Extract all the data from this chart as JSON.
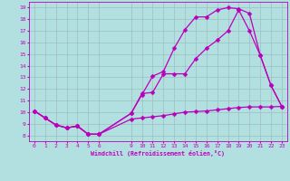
{
  "xlabel": "Windchill (Refroidissement éolien,°C)",
  "bg_color": "#b2dfdf",
  "line_color": "#bb00bb",
  "grid_color": "#9fbfbf",
  "xlim": [
    -0.5,
    23.5
  ],
  "ylim": [
    7.5,
    19.5
  ],
  "xticks": [
    0,
    1,
    2,
    3,
    4,
    5,
    6,
    9,
    10,
    11,
    12,
    13,
    14,
    15,
    16,
    17,
    18,
    19,
    20,
    21,
    22,
    23
  ],
  "yticks": [
    8,
    9,
    10,
    11,
    12,
    13,
    14,
    15,
    16,
    17,
    18,
    19
  ],
  "line1_x": [
    0,
    1,
    2,
    3,
    4,
    5,
    6,
    9,
    10,
    11,
    12,
    13,
    14,
    15,
    16,
    17,
    18,
    19,
    20,
    21,
    22,
    23
  ],
  "line1_y": [
    10.1,
    9.5,
    8.9,
    8.65,
    8.8,
    8.1,
    8.1,
    9.9,
    11.5,
    13.1,
    13.5,
    15.5,
    17.1,
    18.2,
    18.2,
    18.8,
    19.0,
    18.9,
    18.5,
    14.9,
    12.3,
    10.5
  ],
  "line2_x": [
    0,
    1,
    2,
    3,
    4,
    5,
    6,
    9,
    10,
    11,
    12,
    13,
    14,
    15,
    16,
    17,
    18,
    19,
    20,
    21,
    22,
    23
  ],
  "line2_y": [
    10.1,
    9.5,
    8.9,
    8.65,
    8.8,
    8.1,
    8.1,
    9.9,
    11.6,
    11.7,
    13.3,
    13.3,
    13.3,
    14.6,
    15.5,
    16.2,
    17.0,
    18.8,
    17.0,
    14.9,
    12.3,
    10.5
  ],
  "line3_x": [
    0,
    1,
    2,
    3,
    4,
    5,
    6,
    9,
    10,
    11,
    12,
    13,
    14,
    15,
    16,
    17,
    18,
    19,
    20,
    21,
    22,
    23
  ],
  "line3_y": [
    10.1,
    9.5,
    8.9,
    8.65,
    8.8,
    8.1,
    8.1,
    9.4,
    9.5,
    9.6,
    9.7,
    9.85,
    10.0,
    10.05,
    10.1,
    10.2,
    10.3,
    10.4,
    10.45,
    10.45,
    10.45,
    10.5
  ]
}
